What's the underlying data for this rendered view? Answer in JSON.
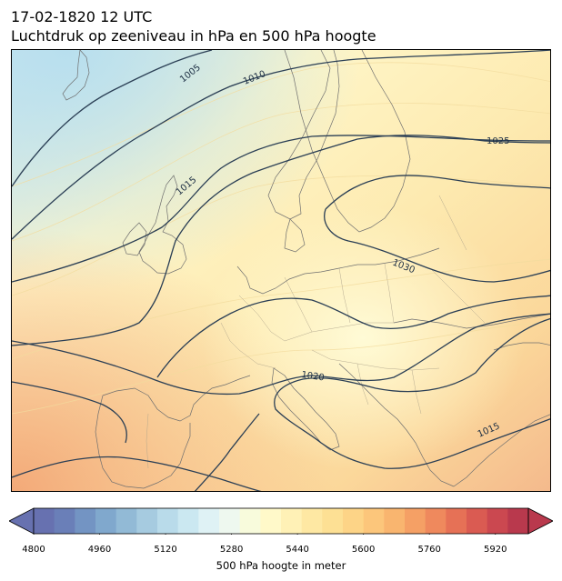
{
  "header": {
    "datetime": "17-02-1820 12 UTC",
    "subtitle": "Luchtdruk op zeeniveau in hPa en 500 hPa hoogte"
  },
  "map": {
    "isobar_labels": [
      "1005",
      "1010",
      "1015",
      "1025",
      "1030",
      "1020",
      "1015"
    ],
    "fill_colors": {
      "cold_edge": "#c7e6f0",
      "mid": "#fff6c8",
      "warm": "#fde3a6",
      "hot_edge": "#f6b98a",
      "isobar": "#2b3f55",
      "border": "#9a9a9a",
      "coast": "#333333"
    }
  },
  "colorbar": {
    "label": "500 hPa hoogte in meter",
    "ticks": [
      "4800",
      "4960",
      "5120",
      "5280",
      "5440",
      "5600",
      "5760",
      "5920"
    ],
    "range": [
      4800,
      6000
    ],
    "colors": [
      "#6771b0",
      "#6a7fb8",
      "#7394c3",
      "#80a8cd",
      "#92bad6",
      "#a6cbe0",
      "#b9dbea",
      "#cbe8f1",
      "#dff2f5",
      "#eef8ef",
      "#f8fbdc",
      "#fff9c9",
      "#fff1b6",
      "#fee8a3",
      "#fde094",
      "#fdd487",
      "#fcc67b",
      "#f9b56f",
      "#f5a065",
      "#ef895d",
      "#e67156",
      "#da5b52",
      "#cb4850",
      "#b9394d"
    ]
  }
}
